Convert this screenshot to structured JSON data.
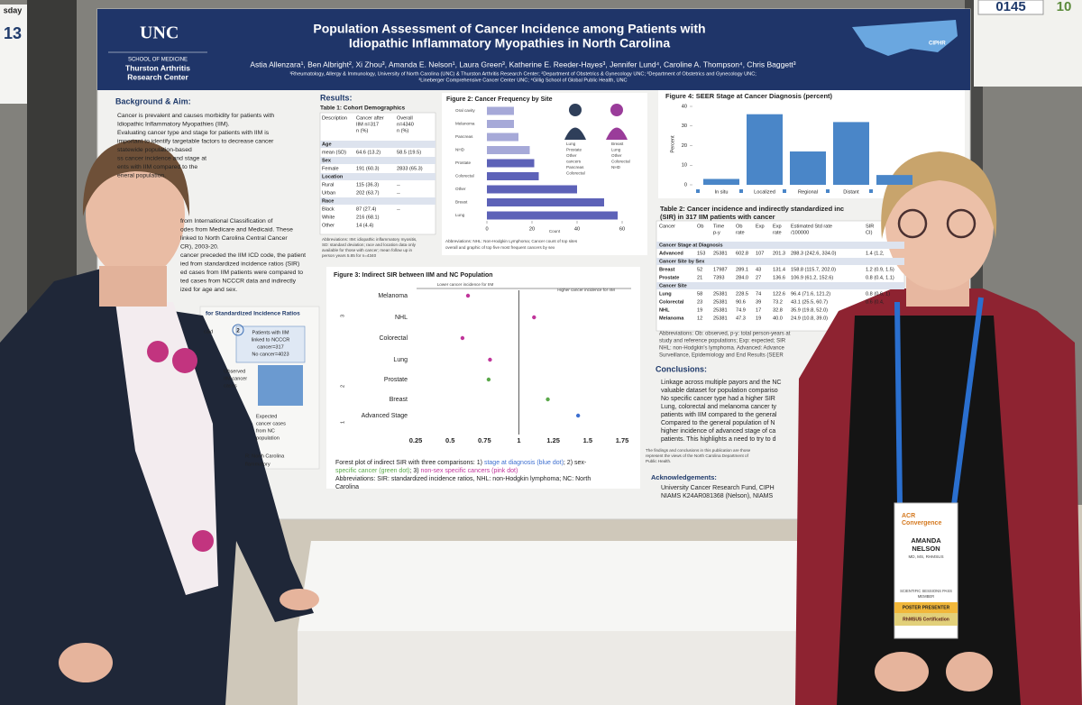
{
  "booth": {
    "left_day": "sday",
    "left_number": "13",
    "right_number": "0145",
    "right_next": "10"
  },
  "poster": {
    "logo": "UNC",
    "school": "SCHOOL OF MEDICINE",
    "center_lines": [
      "Thurston Arthritis",
      "Research Center"
    ],
    "title_lines": [
      "Population Assessment of Cancer Incidence among Patients with",
      "Idiopathic Inflammatory Myopathies in North Carolina"
    ],
    "authors": "Astia Allenzara¹, Ben Albright², Xi Zhou³, Amanda E. Nelson¹, Laura Green³, Katherine E. Reeder-Hayes³, Jennifer Lund⁴, Caroline A. Thompson⁴, Chris Baggett³",
    "affiliations": [
      "¹Rheumatology, Allergy & Immunology, University of North Carolina (UNC) & Thurston Arthritis Research Center; ²Department of Obstetrics & Gynecology UNC; ³Department of Obstetrics and Gynecology UNC;",
      "³Lineberger Comprehensive Cancer Center UNC; ⁴Gillig School of Global Public Health, UNC"
    ],
    "cipher": "CIPHR",
    "background": {
      "heading": "Background & Aim:",
      "lines": [
        "Cancer is prevalent and causes morbidity for patients with",
        "Idiopathic Inflammatory Myopathies (IIM).",
        "Evaluating cancer type and stage for patients with IIM is",
        "important to identify targetable factors to decrease cancer",
        "statewide population-based",
        "ss cancer incidence and stage at",
        "ents with IIM compared to the",
        "eneral population."
      ]
    },
    "methods_lines": [
      "from International Classification of",
      "odes from Medicare and Medicaid. These",
      "linked to North Carolina Central Cancer",
      "CR), 2003-20.",
      "cancer preceded the IIM ICD code, the patient",
      "ied from standardized incidence ratios (SIR)",
      "ed cases from IIM patients were compared to",
      "ted cases from NCCCR data and indirectly",
      "ized for age and sex."
    ],
    "flow": {
      "heading": "for Standardized Incidence Ratios",
      "medicaid": "caid",
      "step": "2",
      "patients_lines": [
        "Patients with IIM",
        "linked to NCCCR",
        "cancer=317",
        "No cancer=4023"
      ],
      "observed_lines": [
        "Observed",
        "IIM cancer",
        "cases"
      ],
      "expected_lines": [
        "Expected",
        "cancer cases",
        "from NC",
        "population"
      ],
      "abbrev_lines": [
        "R: North Carolina",
        "flammatory"
      ]
    },
    "results_heading": "Results:",
    "table1": {
      "title": "Table 1: Cohort Demographics",
      "header": [
        [
          "Description"
        ],
        [
          "Cancer after",
          "IIM n=317",
          "n (%)"
        ],
        [
          "Overall",
          "n=4340",
          "n (%)"
        ]
      ],
      "rows": [
        [
          "Age"
        ],
        [
          "mean (SD)",
          "64.6 (13.2)",
          "58.5 (19.5)"
        ],
        [
          "Sex"
        ],
        [
          "Female",
          "191 (60.3)",
          "2833 (65.3)"
        ],
        [
          "Location"
        ],
        [
          "Rural",
          "115 (36.3)",
          "--"
        ],
        [
          "Urban",
          "202 (63.7)",
          "--"
        ],
        [
          "Race"
        ],
        [
          "Black",
          "87 (27.4)",
          "--"
        ],
        [
          "White",
          "216 (68.1)"
        ],
        [
          "Other",
          "14 (4.4)"
        ]
      ],
      "note_lines": [
        "Abbreviations: IIM: idiopathic inflammatory myositis,",
        "SD: standard deviation; race and location data only",
        "available for those with cancer; mean follow up in",
        "person years 5.85 for n=4340"
      ]
    },
    "figure2": {
      "title": "Figure 2: Cancer Frequency by Site",
      "categories": [
        "Oral cavity",
        "Melanoma",
        "Pancreas",
        "NHD",
        "Prostate",
        "Colorectal",
        "Other",
        "Breast",
        "Lung"
      ],
      "values": [
        12,
        12,
        14,
        19,
        21,
        23,
        40,
        52,
        58
      ],
      "color": "#5d62b8",
      "xlim": [
        0,
        60
      ],
      "xticks": [
        0,
        20,
        40,
        60
      ],
      "xlabel": "Count",
      "male_list": [
        "Lung",
        "Prostate",
        "Other",
        "cancers",
        "Pancreas",
        "Colorectal"
      ],
      "female_list": [
        "Breast",
        "Lung",
        "Other",
        "Colorectal",
        "NHD"
      ],
      "caption_lines": [
        "Abbreviations: NHL: Non-Hodgkin Lymphoma; Cancer count of top sites",
        "overall and graphic of top five most frequent cancers by sex"
      ]
    },
    "figure3": {
      "title": "Figure 3: Indirect SIR between IIM and NC Population",
      "lower": "Lower cancer incidence for IIM",
      "higher": "Higher cancer incidence for IIM",
      "groups": [
        "3",
        "2",
        "1"
      ],
      "categories": [
        "Melanoma",
        "NHL",
        "Colorectal",
        "Lung",
        "Prostate",
        "Breast",
        "Advanced Stage"
      ],
      "values": [
        0.63,
        1.11,
        0.59,
        0.79,
        0.78,
        1.21,
        1.43
      ],
      "colors": [
        "#c0359a",
        "#c0359a",
        "#c0359a",
        "#c0359a",
        "#5aa84a",
        "#5aa84a",
        "#3d6fd0"
      ],
      "xlim": [
        0.25,
        1.75
      ],
      "xticks": [
        0.25,
        0.5,
        0.75,
        1,
        1.25,
        1.5,
        1.75
      ],
      "caption_parts": [
        {
          "text": "Forest plot of indirect SIR with three comparisons: 1) ",
          "color": "#222"
        },
        {
          "text": "stage at diagnosis (blue dot)",
          "color": "#3d6fd0"
        },
        {
          "text": "; 2) sex-",
          "color": "#222"
        }
      ],
      "caption_parts2": [
        {
          "text": "specific cancer (green dot)",
          "color": "#5aa84a"
        },
        {
          "text": "; 3) ",
          "color": "#222"
        },
        {
          "text": "non-sex specific cancers (pink dot)",
          "color": "#c0359a"
        }
      ],
      "caption_lines": [
        "Abbreviations: SIR: standardized incidence ratios, NHL: non-Hodgkin lymphoma; NC: North",
        "Carolina"
      ]
    },
    "figure4": {
      "title": "Figure 4: SEER Stage at Cancer Diagnosis (percent)",
      "ylabel": "Percent",
      "categories": [
        "In situ",
        "Localized",
        "Regional",
        "Distant",
        null
      ],
      "values": [
        3,
        36,
        17,
        32,
        5
      ],
      "color": "#4a86c8",
      "ylim": [
        0,
        40
      ],
      "yticks": [
        0,
        10,
        20,
        30,
        40
      ]
    },
    "table2": {
      "title_lines": [
        "Table 2: Cancer incidence and indirectly standardized inc",
        "(SIR) in 317 IIM patients with cancer"
      ],
      "header": [
        [
          "Cancer"
        ],
        [
          "Ob"
        ],
        [
          "Time",
          "p-y"
        ],
        [
          "Ob",
          "rate"
        ],
        [
          "Exp"
        ],
        [
          "Exp",
          "rate"
        ],
        [
          "Estimated Std rate",
          "/100000"
        ],
        [
          "SIR",
          "CI)"
        ]
      ],
      "rows": [
        [
          "Cancer Stage at Diagnosis"
        ],
        [
          "Advanced",
          "153",
          "25381",
          "602.8",
          "107",
          "201.3",
          "288.3 (242.6, 334.0)",
          "1.4 (1.2,"
        ],
        [
          "Cancer Site by Sex"
        ],
        [
          "Breast",
          "52",
          "17987",
          "289.1",
          "43",
          "131.4",
          "158.8 (115.7, 202.0)",
          "1.2 (0.9, 1.5)"
        ],
        [
          "Prostate",
          "21",
          "7393",
          "284.0",
          "27",
          "136.6",
          "106.9 (61.2, 152.6)",
          "0.8 (0.4, 1.1)"
        ],
        [
          "Cancer Site"
        ],
        [
          "Lung",
          "58",
          "25381",
          "228.5",
          "74",
          "122.6",
          "96.4 (71.6, 121.2)",
          "0.8 (0.6, 1)"
        ],
        [
          "Colorectal",
          "23",
          "25381",
          "90.6",
          "39",
          "73.2",
          "43.1 (25.5, 60.7)",
          "0.6 (0.4,"
        ],
        [
          "NHL",
          "19",
          "25381",
          "74.9",
          "17",
          "32.8",
          "35.9 (19.8, 52.0)"
        ],
        [
          "Melanoma",
          "12",
          "25381",
          "47.3",
          "19",
          "40.0",
          "24.9 (10.8, 39.0)"
        ]
      ],
      "note_lines": [
        "Abbreviations: Ob: observed, p-y: total person-years at",
        "study and reference populations; Exp: expected; SIR",
        "NHL: non-Hodgkin's lymphoma. Advanced: Advance",
        "Surveillance, Epidemiology and End Results (SEER"
      ]
    },
    "conclusions": {
      "heading": "Conclusions:",
      "lines": [
        "Linkage across multiple payors and the NC",
        "valuable dataset for population compariso",
        "No specific cancer type had a higher SIR",
        "Lung, colorectal and melanoma cancer ty",
        "patients with IIM compared to the general",
        "Compared to the general population of N",
        "higher incidence of advanced stage of ca",
        "patients. This highlights a need to try to d"
      ]
    },
    "disclaimer_lines": [
      "The findings and conclusions in this publication are those",
      "represent the views of the North Carolina Department of",
      "Public Health."
    ],
    "acknowledgements": {
      "heading": "Acknowledgements:",
      "lines": [
        "University Cancer Research Fund, CIPH",
        "NIAMS K24AR081368 (Nelson), NIAMS"
      ]
    }
  },
  "badge": {
    "brand_lines": [
      "ACR",
      "Convergence"
    ],
    "name_lines": [
      "AMANDA",
      "NELSON"
    ],
    "credentials": "MD, MS, RHMSUS",
    "pass_lines": [
      "SCIENTIFIC SESSIONS PASS",
      "MEMBER"
    ],
    "role": "POSTER PRESENTER",
    "certification": "RhMSUS Certification"
  }
}
